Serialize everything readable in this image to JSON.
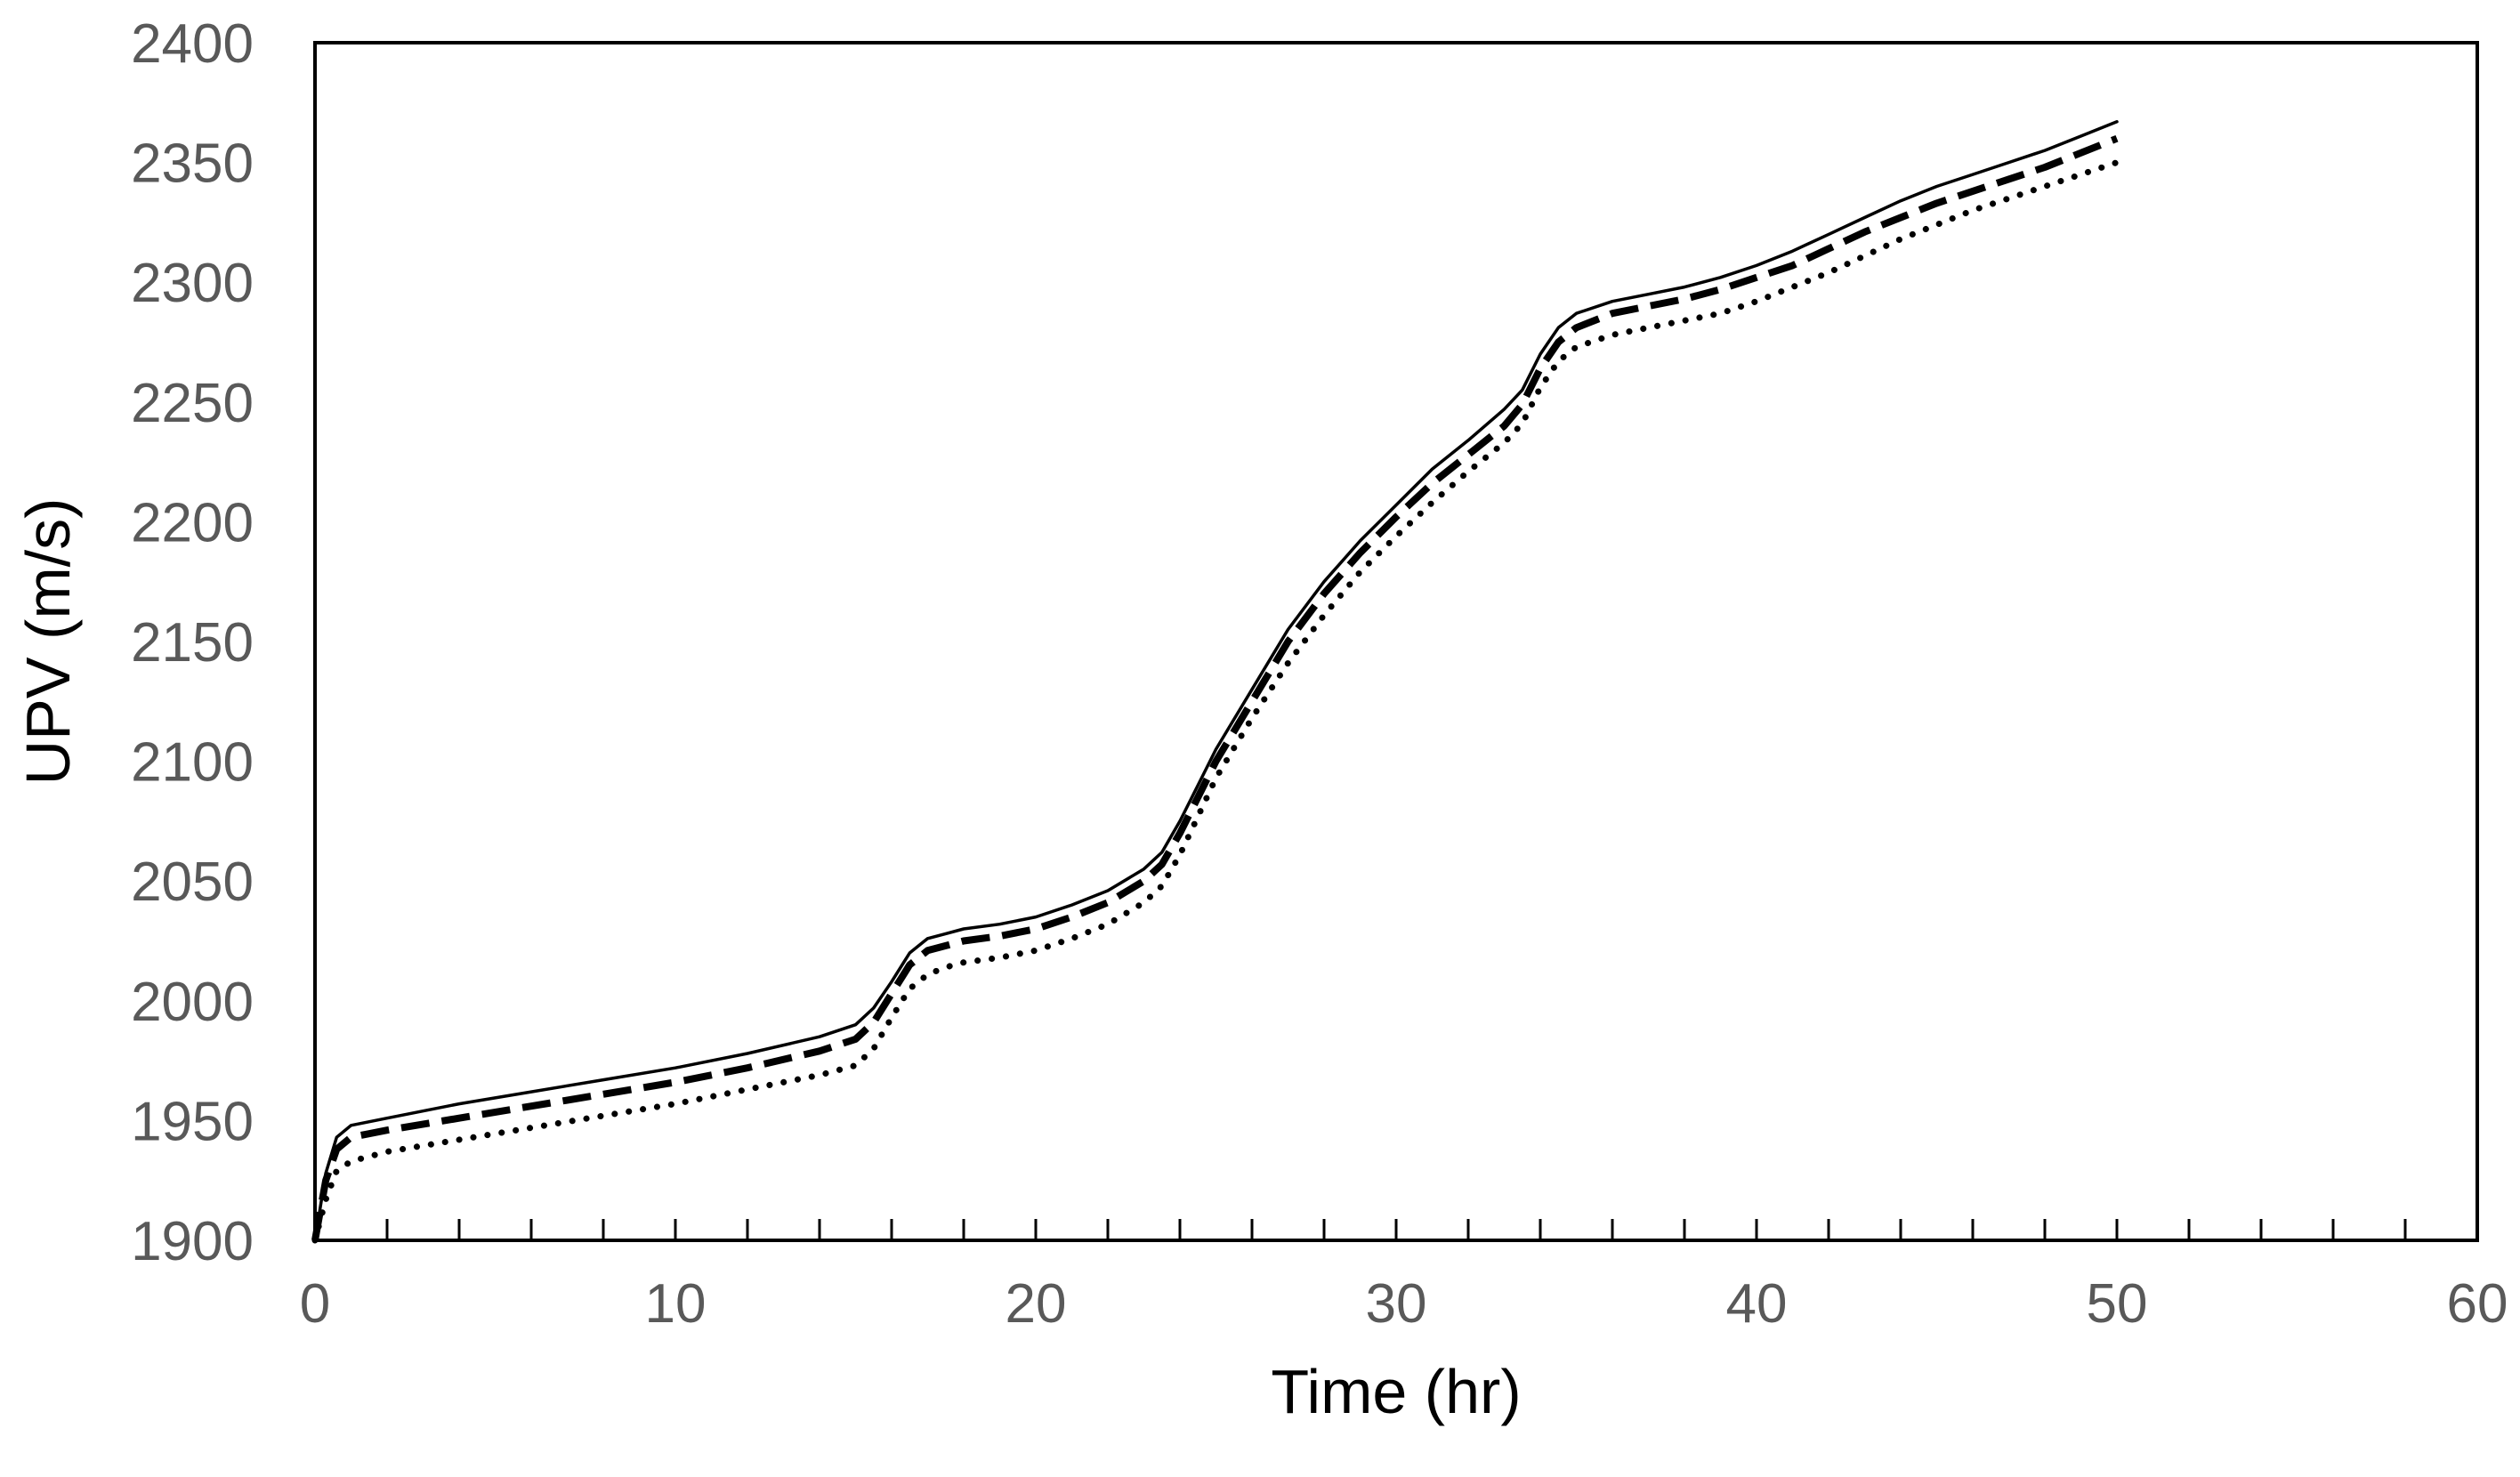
{
  "chart_data": {
    "type": "line",
    "title": "",
    "xlabel": "Time (hr)",
    "ylabel": "UPV (m/s)",
    "xlim": [
      0,
      60
    ],
    "ylim": [
      1900,
      2400
    ],
    "x_ticks": [
      "0",
      "10",
      "20",
      "30",
      "40",
      "50",
      "60"
    ],
    "y_ticks": [
      "1900",
      "1950",
      "2000",
      "2050",
      "2100",
      "2150",
      "2200",
      "2250",
      "2300",
      "2350",
      "2400"
    ],
    "x_minor_step": 2,
    "grid": false,
    "legend": "none",
    "series": [
      {
        "name": "solid",
        "style": "solid",
        "color": "#000000",
        "x": [
          0,
          0.3,
          0.6,
          1,
          2,
          4,
          6,
          8,
          10,
          12,
          14,
          15,
          15.5,
          16,
          16.5,
          17,
          17.5,
          18,
          19,
          20,
          21,
          22,
          23,
          23.5,
          24,
          24.5,
          25,
          26,
          27,
          28,
          29,
          30,
          31,
          32,
          33,
          33.5,
          34,
          34.5,
          35,
          36,
          37,
          38,
          39,
          40,
          41,
          42,
          43,
          44,
          45,
          46,
          47,
          48,
          49,
          50
        ],
        "y": [
          1900,
          1928,
          1943,
          1948,
          1951,
          1957,
          1962,
          1967,
          1972,
          1978,
          1985,
          1990,
          1997,
          2008,
          2020,
          2026,
          2028,
          2030,
          2032,
          2035,
          2040,
          2046,
          2055,
          2062,
          2075,
          2090,
          2105,
          2130,
          2155,
          2175,
          2192,
          2207,
          2222,
          2234,
          2247,
          2255,
          2270,
          2281,
          2287,
          2292,
          2295,
          2298,
          2302,
          2307,
          2313,
          2320,
          2327,
          2334,
          2340,
          2345,
          2350,
          2355,
          2361,
          2367
        ]
      },
      {
        "name": "dashed",
        "style": "dashed",
        "color": "#000000",
        "x": [
          0,
          0.3,
          0.6,
          1,
          2,
          4,
          6,
          8,
          10,
          12,
          14,
          15,
          15.5,
          16,
          16.5,
          17,
          17.5,
          18,
          19,
          20,
          21,
          22,
          23,
          23.5,
          24,
          24.5,
          25,
          26,
          27,
          28,
          29,
          30,
          31,
          32,
          33,
          33.5,
          34,
          34.5,
          35,
          36,
          37,
          38,
          39,
          40,
          41,
          42,
          43,
          44,
          45,
          46,
          47,
          48,
          49,
          50
        ],
        "y": [
          1900,
          1925,
          1938,
          1943,
          1946,
          1951,
          1956,
          1961,
          1966,
          1972,
          1979,
          1984,
          1991,
          2003,
          2015,
          2021,
          2023,
          2025,
          2027,
          2030,
          2035,
          2041,
          2050,
          2057,
          2070,
          2085,
          2100,
          2125,
          2150,
          2170,
          2187,
          2202,
          2216,
          2228,
          2240,
          2249,
          2264,
          2275,
          2281,
          2287,
          2290,
          2293,
          2297,
          2302,
          2307,
          2314,
          2321,
          2327,
          2333,
          2338,
          2343,
          2348,
          2354,
          2360
        ]
      },
      {
        "name": "dotted",
        "style": "dotted",
        "color": "#000000",
        "x": [
          0,
          0.3,
          0.6,
          1,
          2,
          4,
          6,
          8,
          10,
          12,
          14,
          15,
          15.5,
          16,
          16.5,
          17,
          17.5,
          18,
          19,
          20,
          21,
          22,
          23,
          23.5,
          24,
          24.5,
          25,
          26,
          27,
          28,
          29,
          30,
          31,
          32,
          33,
          33.5,
          34,
          34.5,
          35,
          36,
          37,
          38,
          39,
          40,
          41,
          42,
          43,
          44,
          45,
          46,
          47,
          48,
          49,
          50
        ],
        "y": [
          1900,
          1917,
          1929,
          1933,
          1937,
          1942,
          1947,
          1952,
          1957,
          1963,
          1969,
          1973,
          1980,
          1993,
          2005,
          2011,
          2014,
          2016,
          2018,
          2021,
          2026,
          2032,
          2041,
          2048,
          2061,
          2077,
          2093,
          2118,
          2141,
          2161,
          2179,
          2194,
          2208,
          2221,
          2233,
          2241,
          2256,
          2267,
          2273,
          2278,
          2281,
          2284,
          2287,
          2292,
          2298,
          2304,
          2311,
          2318,
          2324,
          2330,
          2335,
          2340,
          2345,
          2350
        ]
      }
    ]
  }
}
